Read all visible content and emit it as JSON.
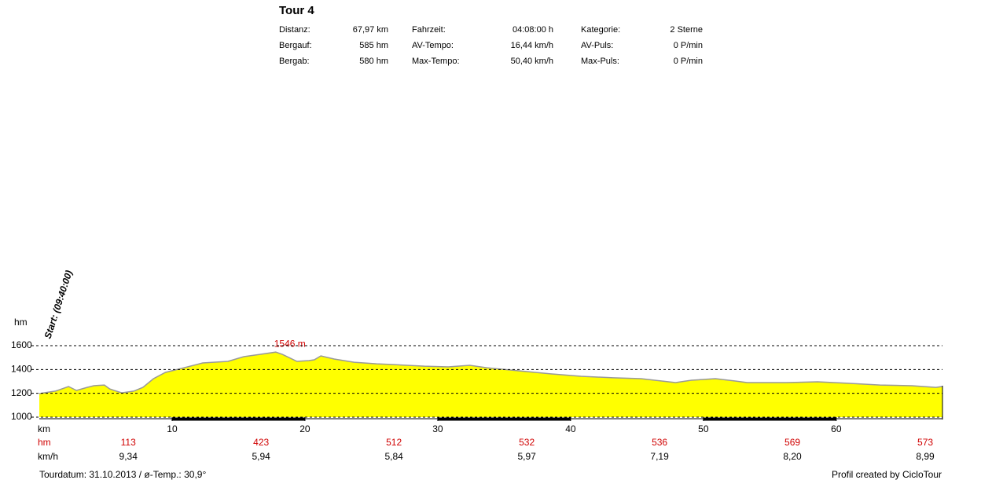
{
  "header": {
    "title": "Tour 4",
    "rows": [
      [
        "Distanz:",
        "67,97 km",
        "Fahrzeit:",
        "04:08:00 h",
        "Kategorie:",
        "2 Sterne"
      ],
      [
        "Bergauf:",
        "585 hm",
        "AV-Tempo:",
        "16,44 km/h",
        "AV-Puls:",
        "0 P/min"
      ],
      [
        "Bergab:",
        "580 hm",
        "Max-Tempo:",
        "50,40 km/h",
        "Max-Puls:",
        "0 P/min"
      ]
    ]
  },
  "chart_data": {
    "type": "area",
    "y_label": "hm",
    "x_label": "km",
    "start_label": "Start: (09:40:00)",
    "peak_label": "1546 m",
    "xlim": [
      0,
      68
    ],
    "ylim": [
      1000,
      1600
    ],
    "xticks": [
      10,
      20,
      30,
      40,
      50,
      60
    ],
    "yticks": [
      1000,
      1200,
      1400,
      1600
    ],
    "grid": true,
    "series": [
      {
        "color": "#ffff00",
        "x": [
          0,
          1.2,
          2.2,
          2.8,
          3.6,
          4.1,
          4.9,
          5.3,
          6.2,
          7.1,
          7.8,
          8.6,
          9.5,
          10.9,
          12.3,
          14.2,
          15.4,
          16.6,
          17.8,
          18.3,
          19.4,
          20.3,
          20.7,
          21.2,
          22.2,
          23.7,
          25.4,
          26.6,
          29.0,
          30.8,
          32.4,
          33.7,
          36.1,
          38.5,
          40.8,
          43.2,
          45.3,
          47.9,
          49.1,
          50.9,
          52.4,
          53.3,
          56.2,
          58.6,
          60.9,
          63.3,
          65.7,
          67.5,
          67.97
        ],
        "values": [
          1198,
          1218,
          1257,
          1224,
          1250,
          1264,
          1270,
          1237,
          1204,
          1218,
          1250,
          1323,
          1376,
          1415,
          1455,
          1468,
          1508,
          1527,
          1546,
          1527,
          1468,
          1475,
          1481,
          1514,
          1488,
          1461,
          1448,
          1442,
          1428,
          1422,
          1435,
          1415,
          1389,
          1363,
          1343,
          1330,
          1323,
          1290,
          1310,
          1323,
          1303,
          1290,
          1290,
          1297,
          1284,
          1270,
          1264,
          1250,
          1257
        ]
      }
    ],
    "segments": {
      "hm_label": "hm",
      "hm": [
        113,
        423,
        512,
        532,
        536,
        569,
        573
      ],
      "speed_label": "km/h",
      "speed": [
        "9,34",
        "5,94",
        "5,84",
        "5,97",
        "7,19",
        "8,20",
        "8,99"
      ]
    }
  },
  "footer": {
    "left": "Tourdatum: 31.10.2013  /  ø-Temp.: 30,9°",
    "right": "Profil created by CicloTour"
  }
}
